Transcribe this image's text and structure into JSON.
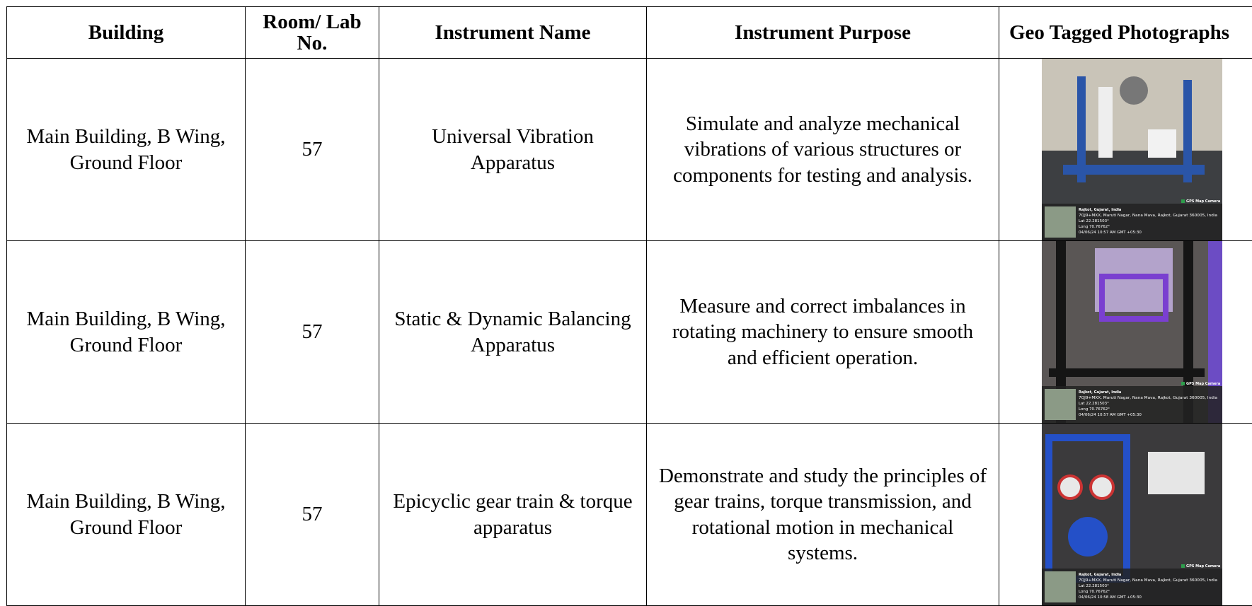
{
  "table": {
    "headers": [
      "Building",
      "Room/ Lab No.",
      "Instrument Name",
      "Instrument Purpose",
      "Geo Tagged Photographs"
    ],
    "rows": [
      {
        "building": "Main Building, B Wing, Ground Floor",
        "room": 57,
        "instrument": "Universal Vibration Apparatus",
        "purpose": "Simulate and analyze mechanical vibrations of various structures or components for testing and analysis.",
        "photo": {
          "badge": "GPS Map Camera",
          "place": "Rajkot, Gujarat, India",
          "address": "7QJ9+MXX, Maruti Nagar, Nana Mava, Rajkot, Gujarat 360005, India",
          "lat": "Lat 22.281503°",
          "long": "Long 70.76762°",
          "datetime": "04/06/24 10:57 AM GMT +05:30"
        }
      },
      {
        "building": "Main Building, B Wing, Ground Floor",
        "room": 57,
        "instrument": "Static & Dynamic Balancing Apparatus",
        "purpose": "Measure and correct imbalances in rotating machinery to ensure smooth and efficient operation.",
        "photo": {
          "badge": "GPS Map Camera",
          "place": "Rajkot, Gujarat, India",
          "address": "7QJ9+MXX, Maruti Nagar, Nana Mava, Rajkot, Gujarat 360005, India",
          "lat": "Lat 22.281503°",
          "long": "Long 70.76762°",
          "datetime": "04/06/24 10:57 AM GMT +05:30"
        }
      },
      {
        "building": "Main Building, B Wing, Ground Floor",
        "room": 57,
        "instrument": "Epicyclic gear train & torque apparatus",
        "purpose": "Demonstrate and study the principles of gear trains, torque transmission, and rotational motion in mechanical systems.",
        "photo": {
          "badge": "GPS Map Camera",
          "place": "Rajkot, Gujarat, India",
          "address": "7QJ9+MXX, Maruti Nagar, Nana Mava, Rajkot, Gujarat 360005, India",
          "lat": "Lat 22.281503°",
          "long": "Long 70.76762°",
          "datetime": "04/06/24 10:58 AM GMT +05:30"
        }
      }
    ]
  }
}
